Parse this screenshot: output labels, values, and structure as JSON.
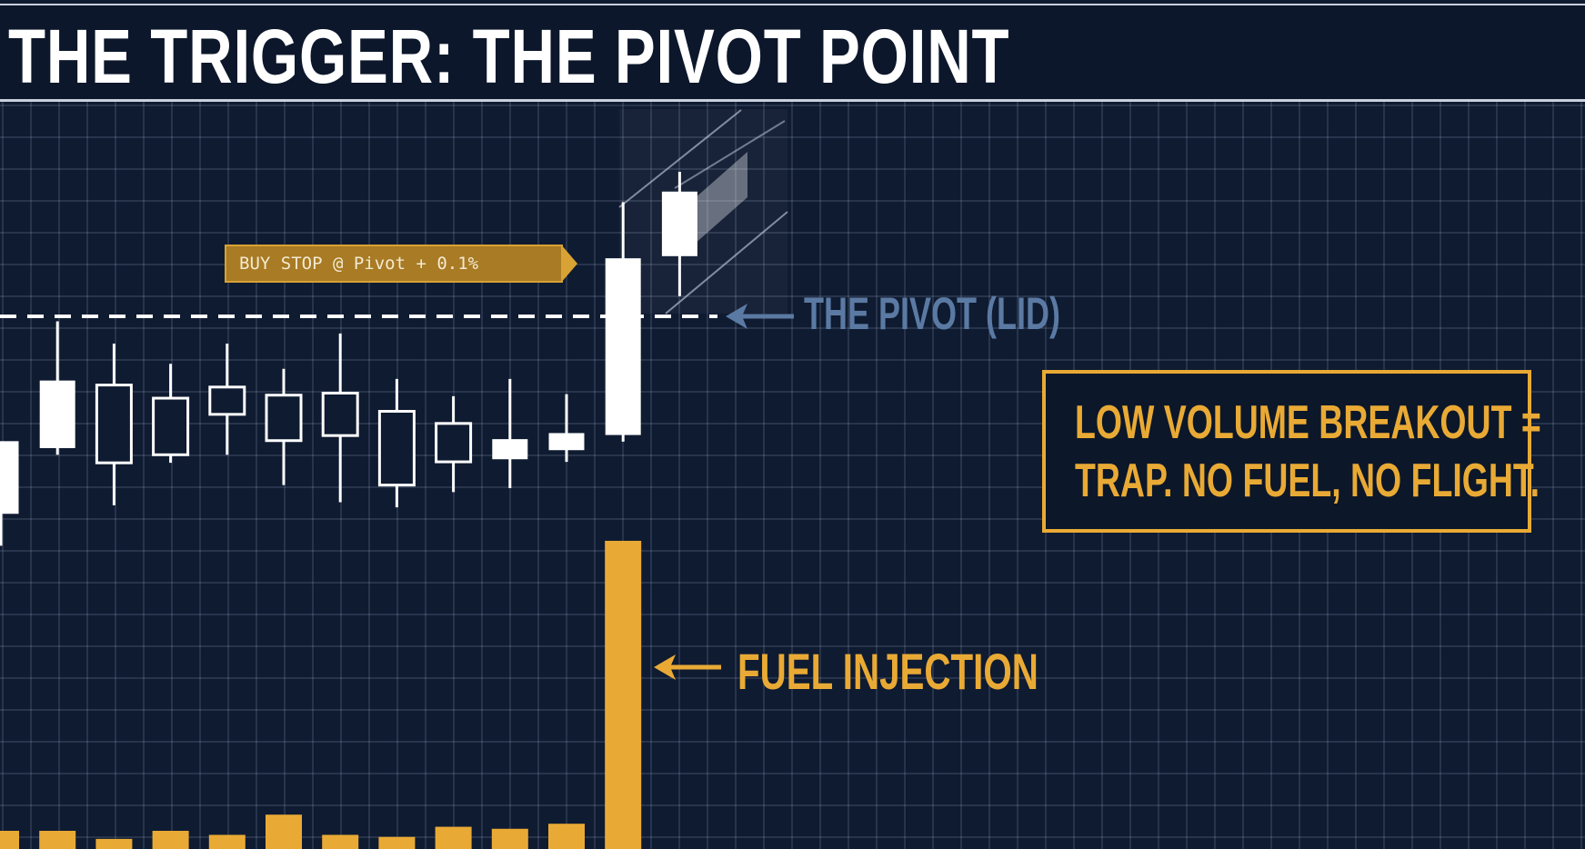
{
  "title": "THE TRIGGER: THE PIVOT POINT",
  "colors": {
    "background": "#0f1b31",
    "grid": "#b4c3dc",
    "candle": "#ffffff",
    "volume": "#e9aa35",
    "pivot_label": "#5b7aa3",
    "accent": "#e9aa35"
  },
  "annotations": {
    "buy_stop": "BUY STOP @ Pivot + 0.1%",
    "pivot": "THE PIVOT (LID)",
    "fuel": "FUEL INJECTION",
    "callout_line1": "LOW VOLUME BREAKOUT =",
    "callout_line2": "TRAP. NO FUEL, NO FLIGHT."
  },
  "chart_data": {
    "type": "candlestick",
    "grid": true,
    "pivot_level": 100,
    "candles": [
      {
        "open": 80.5,
        "high": 87.6,
        "low": 77.3,
        "close": 87.6,
        "style": "filled"
      },
      {
        "open": 87.0,
        "high": 99.5,
        "low": 86.3,
        "close": 93.6,
        "style": "filled"
      },
      {
        "open": 93.2,
        "high": 97.3,
        "low": 81.3,
        "close": 85.5,
        "style": "hollow"
      },
      {
        "open": 91.9,
        "high": 95.3,
        "low": 85.5,
        "close": 86.3,
        "style": "hollow"
      },
      {
        "open": 93.0,
        "high": 97.3,
        "low": 86.3,
        "close": 90.3,
        "style": "hollow"
      },
      {
        "open": 92.2,
        "high": 94.8,
        "low": 83.3,
        "close": 87.7,
        "style": "hollow"
      },
      {
        "open": 92.4,
        "high": 98.3,
        "low": 81.6,
        "close": 88.2,
        "style": "hollow"
      },
      {
        "open": 90.6,
        "high": 93.8,
        "low": 81.1,
        "close": 83.3,
        "style": "hollow"
      },
      {
        "open": 89.4,
        "high": 92.1,
        "low": 82.6,
        "close": 85.6,
        "style": "hollow"
      },
      {
        "open": 85.9,
        "high": 93.8,
        "low": 83.0,
        "close": 87.8,
        "style": "filled"
      },
      {
        "open": 86.8,
        "high": 92.3,
        "low": 85.6,
        "close": 88.4,
        "style": "filled"
      },
      {
        "open": 88.3,
        "high": 111.3,
        "low": 87.6,
        "close": 105.7,
        "style": "filled"
      },
      {
        "open": 106.0,
        "high": 114.3,
        "low": 102.0,
        "close": 112.3,
        "style": "filled",
        "projected": true
      }
    ],
    "volume": [
      18,
      18,
      10,
      18,
      14,
      34,
      14,
      12,
      22,
      20,
      25,
      305
    ]
  }
}
